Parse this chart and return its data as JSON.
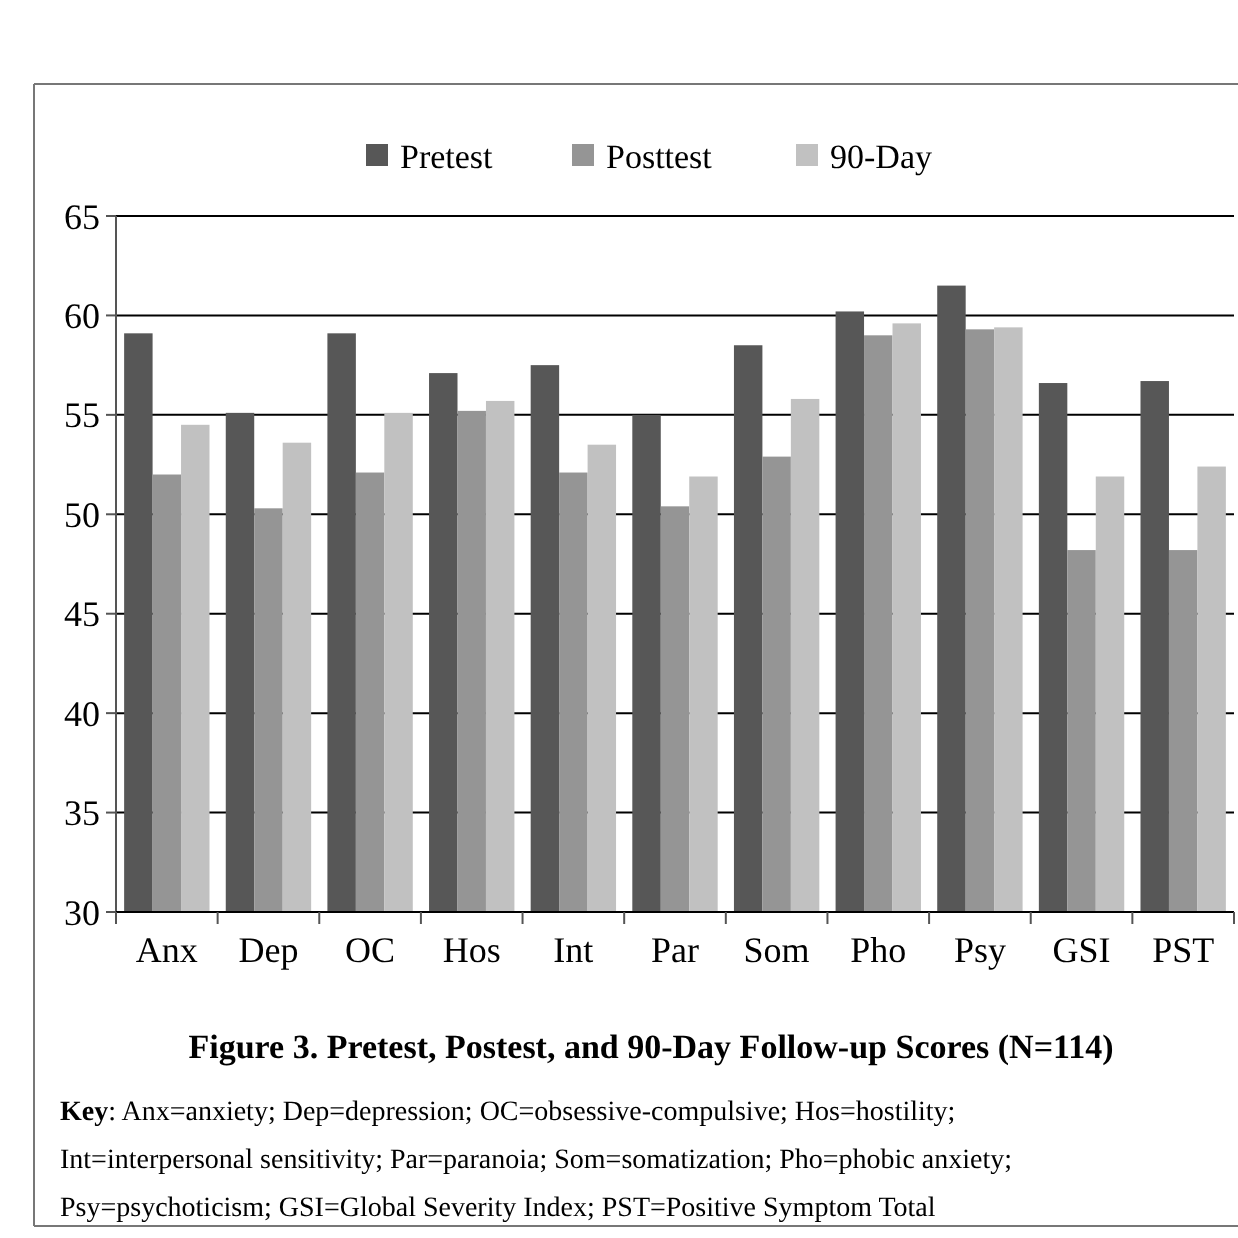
{
  "chart_data": {
    "type": "bar",
    "title": "Figure 3. Pretest, Postest, and 90-Day Follow-up Scores (N=114)",
    "categories": [
      "Anx",
      "Dep",
      "OC",
      "Hos",
      "Int",
      "Par",
      "Som",
      "Pho",
      "Psy",
      "GSI",
      "PST"
    ],
    "series": [
      {
        "name": "Pretest",
        "color": "#575757",
        "values": [
          59.1,
          55.1,
          59.1,
          57.1,
          57.5,
          55.0,
          58.5,
          60.2,
          61.5,
          56.6,
          56.7
        ]
      },
      {
        "name": "Posttest",
        "color": "#959595",
        "values": [
          52.0,
          50.3,
          52.1,
          55.2,
          52.1,
          50.4,
          52.9,
          59.0,
          59.3,
          48.2,
          48.2
        ]
      },
      {
        "name": "90-Day",
        "color": "#c1c1c1",
        "values": [
          54.5,
          53.6,
          55.1,
          55.7,
          53.5,
          51.9,
          55.8,
          59.6,
          59.4,
          51.9,
          52.4
        ]
      }
    ],
    "ylim": [
      30,
      65
    ],
    "yticks": [
      30,
      35,
      40,
      45,
      50,
      55,
      60,
      65
    ],
    "grid": "y",
    "legend": "top",
    "annotations": [
      "Key: Anx=anxiety; Dep=depression; OC=obsessive-compulsive; Hos=hostility; Int=interpersonal sensitivity; Par=paranoia; Som=somatization; Pho=phobic anxiety; Psy=psychoticism; GSI=Global Severity Index; PST=Positive Symptom Total"
    ]
  }
}
